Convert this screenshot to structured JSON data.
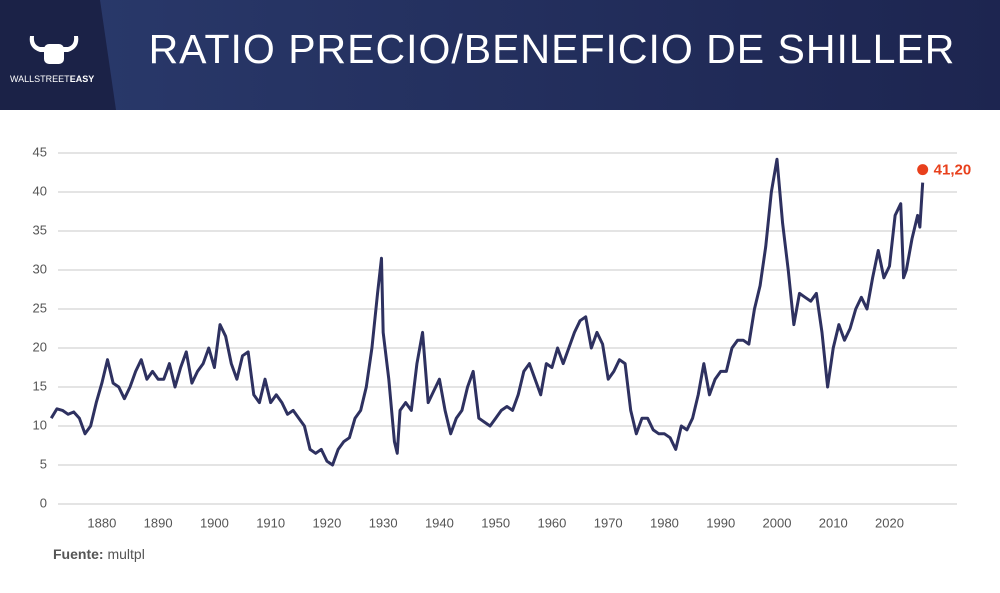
{
  "header": {
    "brand": "WALLSTREET",
    "brand_bold": "EASY"
  },
  "chart_data": {
    "type": "line",
    "title": "RATIO PRECIO/BENEFICIO DE SHILLER",
    "source_label": "Fuente:",
    "source": "multpl",
    "color": "#2e3160",
    "highlight_color": "#e8401c",
    "x": [
      1871,
      1872,
      1873,
      1874,
      1875,
      1876,
      1877,
      1878,
      1879,
      1880,
      1881,
      1882,
      1883,
      1884,
      1885,
      1886,
      1887,
      1888,
      1889,
      1890,
      1891,
      1892,
      1893,
      1894,
      1895,
      1896,
      1897,
      1898,
      1899,
      1900,
      1901,
      1902,
      1903,
      1904,
      1905,
      1906,
      1907,
      1908,
      1909,
      1910,
      1911,
      1912,
      1913,
      1914,
      1915,
      1916,
      1917,
      1918,
      1919,
      1920,
      1921,
      1922,
      1923,
      1924,
      1925,
      1926,
      1927,
      1928,
      1929,
      1929.7,
      1930,
      1931,
      1932,
      1932.5,
      1933,
      1934,
      1935,
      1936,
      1937,
      1938,
      1939,
      1940,
      1941,
      1942,
      1943,
      1944,
      1945,
      1946,
      1947,
      1948,
      1949,
      1950,
      1951,
      1952,
      1953,
      1954,
      1955,
      1956,
      1957,
      1958,
      1959,
      1960,
      1961,
      1962,
      1963,
      1964,
      1965,
      1966,
      1967,
      1968,
      1969,
      1970,
      1971,
      1972,
      1973,
      1974,
      1975,
      1976,
      1977,
      1978,
      1979,
      1980,
      1981,
      1982,
      1983,
      1984,
      1985,
      1986,
      1987,
      1988,
      1989,
      1990,
      1991,
      1992,
      1993,
      1994,
      1995,
      1996,
      1997,
      1998,
      1999,
      2000,
      2001,
      2002,
      2003,
      2004,
      2005,
      2006,
      2007,
      2008,
      2009,
      2010,
      2011,
      2012,
      2013,
      2014,
      2015,
      2016,
      2017,
      2018,
      2019,
      2020,
      2021,
      2022,
      2022.5,
      2023,
      2024,
      2025,
      2025.4,
      2025.9
    ],
    "values": [
      11,
      12.2,
      12,
      11.5,
      11.8,
      11,
      9,
      10,
      13,
      15.5,
      18.5,
      15.5,
      15,
      13.5,
      15,
      17,
      18.5,
      16,
      17,
      16,
      16,
      18,
      15,
      17.5,
      19.5,
      15.5,
      17,
      18,
      20,
      17.5,
      23,
      21.5,
      18,
      16,
      19,
      19.5,
      14,
      13,
      16,
      13,
      14,
      13,
      11.5,
      12,
      11,
      10,
      7,
      6.5,
      7,
      5.5,
      5,
      7,
      8,
      8.5,
      11,
      12,
      15,
      20,
      27,
      31.5,
      22,
      16,
      8,
      6.5,
      12,
      13,
      12,
      18,
      22,
      13,
      14.5,
      16,
      12,
      9,
      11,
      12,
      15,
      17,
      11,
      10.5,
      10,
      11,
      12,
      12.5,
      12,
      14,
      17,
      18,
      16,
      14,
      18,
      17.5,
      20,
      18,
      20,
      22,
      23.5,
      24,
      20,
      22,
      20.5,
      16,
      17,
      18.5,
      18,
      12,
      9,
      11,
      11,
      9.5,
      9,
      9,
      8.5,
      7,
      10,
      9.5,
      11,
      14,
      18,
      14,
      16,
      17,
      17,
      20,
      21,
      21,
      20.5,
      25,
      28,
      33,
      40,
      44.2,
      36,
      30,
      23,
      27,
      26.5,
      26,
      27,
      22,
      15,
      20,
      23,
      21,
      22.5,
      25,
      26.5,
      25,
      29,
      32.5,
      29,
      30.5,
      37,
      38.5,
      29,
      30,
      34,
      37,
      35.5,
      41.2
    ],
    "value_labels": [
      null,
      null,
      null,
      null,
      null,
      null,
      null,
      null,
      null,
      null,
      null,
      null,
      null,
      null,
      null,
      null,
      null,
      null,
      null,
      null,
      null,
      null,
      null,
      null,
      null,
      null,
      null,
      null,
      null,
      null,
      null,
      null,
      null,
      null,
      null,
      null,
      null,
      null,
      null,
      null,
      null,
      null,
      null,
      null,
      null,
      null,
      null,
      null,
      null,
      null,
      null,
      null,
      null,
      null,
      null,
      null,
      null,
      null,
      null,
      null,
      null,
      null,
      null,
      null,
      null,
      null,
      null,
      null,
      null,
      null,
      null,
      null,
      null,
      null,
      null,
      null,
      null,
      null,
      null,
      null,
      null,
      null,
      null,
      null,
      null,
      null,
      null,
      null,
      null,
      null,
      null,
      null,
      null,
      null,
      null,
      null,
      null,
      null,
      null,
      null,
      null,
      null,
      null,
      null,
      null,
      null,
      null,
      null,
      null,
      null,
      null,
      null,
      null,
      null,
      null,
      null,
      null,
      null,
      null,
      null,
      null,
      null,
      null,
      null,
      null,
      null,
      null,
      null,
      null,
      null,
      null,
      null,
      null,
      null,
      null,
      null,
      null,
      null,
      null,
      null,
      null,
      null,
      null,
      null,
      null,
      null,
      null,
      null,
      null,
      null,
      null,
      null,
      null,
      null,
      null,
      null,
      null,
      null,
      null,
      "41,20"
    ],
    "xlim": [
      1869,
      2032
    ],
    "xticks": [
      1880,
      1890,
      1900,
      1910,
      1920,
      1930,
      1940,
      1950,
      1960,
      1970,
      1980,
      1990,
      2000,
      2010,
      2020
    ],
    "ylim": [
      0,
      45
    ],
    "yticks": [
      0,
      5,
      10,
      15,
      20,
      25,
      30,
      35,
      40,
      45
    ],
    "grid": true
  }
}
